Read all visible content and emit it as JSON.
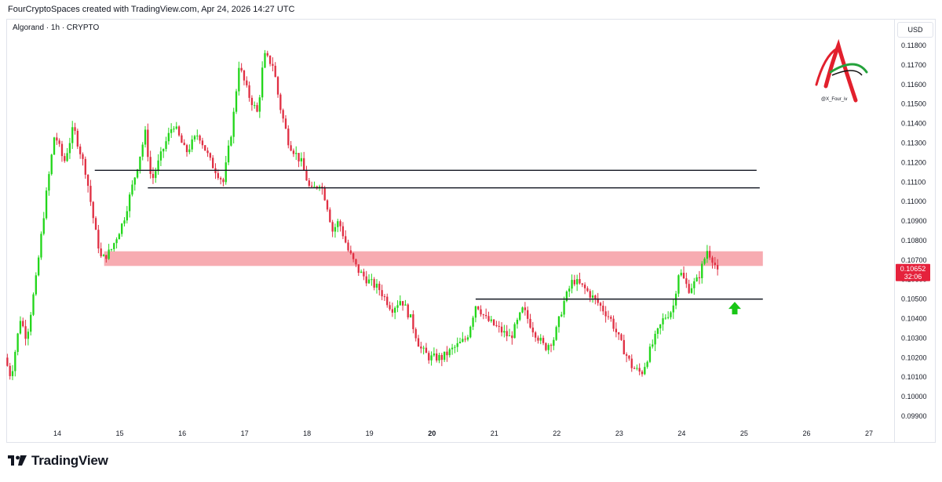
{
  "header": {
    "attribution": "FourCryptoSpaces created with TradingView.com, Apr 24, 2026 14:27 UTC"
  },
  "symbol": {
    "title": "Algorand · 1h · CRYPTO"
  },
  "currency": "USD",
  "price_label": {
    "value": "0.10652",
    "countdown": "32:06"
  },
  "watermark": {
    "handle": "@X_Four_iv"
  },
  "footer": {
    "brand": "TradingView"
  },
  "colors": {
    "up": "#22d61a",
    "down": "#e02f43",
    "zone": "#f7a6ad",
    "arrow": "#19c616",
    "price_tag": "#e5223c"
  },
  "chart_data": {
    "type": "candlestick",
    "y_axis": {
      "min": 0.099,
      "max": 0.1185,
      "ticks": [
        "0.09900",
        "0.10000",
        "0.10100",
        "0.10200",
        "0.10300",
        "0.10400",
        "0.10500",
        "0.10600",
        "0.10700",
        "0.10800",
        "0.10900",
        "0.11000",
        "0.11100",
        "0.11200",
        "0.11300",
        "0.11400",
        "0.11500",
        "0.11600",
        "0.11700",
        "0.11800"
      ]
    },
    "x_axis": {
      "ticks": [
        {
          "label": "14",
          "day": 14
        },
        {
          "label": "15",
          "day": 15
        },
        {
          "label": "16",
          "day": 16
        },
        {
          "label": "17",
          "day": 17
        },
        {
          "label": "18",
          "day": 18
        },
        {
          "label": "19",
          "day": 19
        },
        {
          "label": "20",
          "day": 20,
          "bold": true
        },
        {
          "label": "21",
          "day": 21
        },
        {
          "label": "22",
          "day": 22
        },
        {
          "label": "23",
          "day": 23
        },
        {
          "label": "24",
          "day": 24
        },
        {
          "label": "25",
          "day": 25
        },
        {
          "label": "26",
          "day": 26
        },
        {
          "label": "27",
          "day": 27
        }
      ]
    },
    "x_range": [
      13.2,
      27.2
    ],
    "price_path": [
      [
        13.2,
        0.102
      ],
      [
        13.3,
        0.101
      ],
      [
        13.45,
        0.104
      ],
      [
        13.55,
        0.103
      ],
      [
        13.7,
        0.106
      ],
      [
        13.85,
        0.11
      ],
      [
        14.0,
        0.1135
      ],
      [
        14.15,
        0.112
      ],
      [
        14.3,
        0.1138
      ],
      [
        14.5,
        0.1115
      ],
      [
        14.65,
        0.1085
      ],
      [
        14.75,
        0.107
      ],
      [
        14.9,
        0.1075
      ],
      [
        15.1,
        0.109
      ],
      [
        15.3,
        0.1115
      ],
      [
        15.45,
        0.1135
      ],
      [
        15.55,
        0.111
      ],
      [
        15.75,
        0.1128
      ],
      [
        15.9,
        0.114
      ],
      [
        16.1,
        0.1125
      ],
      [
        16.3,
        0.1135
      ],
      [
        16.5,
        0.112
      ],
      [
        16.7,
        0.111
      ],
      [
        16.85,
        0.114
      ],
      [
        16.95,
        0.117
      ],
      [
        17.1,
        0.1155
      ],
      [
        17.25,
        0.1145
      ],
      [
        17.35,
        0.1175
      ],
      [
        17.5,
        0.117
      ],
      [
        17.6,
        0.115
      ],
      [
        17.75,
        0.113
      ],
      [
        17.95,
        0.112
      ],
      [
        18.1,
        0.1105
      ],
      [
        18.25,
        0.111
      ],
      [
        18.35,
        0.11
      ],
      [
        18.45,
        0.1085
      ],
      [
        18.55,
        0.109
      ],
      [
        18.7,
        0.1075
      ],
      [
        18.85,
        0.1065
      ],
      [
        19.0,
        0.106
      ],
      [
        19.2,
        0.1055
      ],
      [
        19.4,
        0.1045
      ],
      [
        19.55,
        0.105
      ],
      [
        19.7,
        0.104
      ],
      [
        19.85,
        0.1025
      ],
      [
        20.0,
        0.102
      ],
      [
        20.2,
        0.102
      ],
      [
        20.4,
        0.1025
      ],
      [
        20.6,
        0.103
      ],
      [
        20.75,
        0.1048
      ],
      [
        20.9,
        0.104
      ],
      [
        21.1,
        0.1035
      ],
      [
        21.3,
        0.103
      ],
      [
        21.5,
        0.1045
      ],
      [
        21.65,
        0.1035
      ],
      [
        21.85,
        0.1025
      ],
      [
        22.0,
        0.103
      ],
      [
        22.15,
        0.1048
      ],
      [
        22.3,
        0.106
      ],
      [
        22.5,
        0.1055
      ],
      [
        22.7,
        0.1048
      ],
      [
        22.9,
        0.104
      ],
      [
        23.1,
        0.1025
      ],
      [
        23.25,
        0.1015
      ],
      [
        23.4,
        0.1012
      ],
      [
        23.55,
        0.1025
      ],
      [
        23.75,
        0.104
      ],
      [
        23.9,
        0.1045
      ],
      [
        24.0,
        0.1065
      ],
      [
        24.15,
        0.1055
      ],
      [
        24.3,
        0.106
      ],
      [
        24.45,
        0.1075
      ],
      [
        24.55,
        0.107
      ],
      [
        24.6,
        0.10652
      ]
    ],
    "horizontal_lines": [
      {
        "y": 0.1116,
        "x_from": 14.6,
        "x_to": 25.2
      },
      {
        "y": 0.1107,
        "x_from": 15.45,
        "x_to": 25.25
      },
      {
        "y": 0.105,
        "x_from": 20.7,
        "x_to": 25.3
      }
    ],
    "zone": {
      "y_top": 0.10745,
      "y_bottom": 0.1067,
      "x_from": 14.75,
      "x_to": 25.3
    },
    "arrow": {
      "x": 24.85,
      "y": 0.1045,
      "direction": "up"
    },
    "last_price": 0.10652
  }
}
